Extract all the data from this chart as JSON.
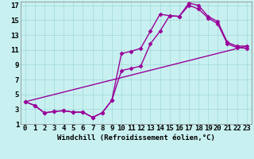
{
  "xlabel": "Windchill (Refroidissement éolien,°C)",
  "bg_color": "#c8f0f0",
  "line_color": "#990099",
  "xlim": [
    -0.5,
    23.5
  ],
  "ylim": [
    1,
    17.5
  ],
  "xticks": [
    0,
    1,
    2,
    3,
    4,
    5,
    6,
    7,
    8,
    9,
    10,
    11,
    12,
    13,
    14,
    15,
    16,
    17,
    18,
    19,
    20,
    21,
    22,
    23
  ],
  "yticks": [
    1,
    3,
    5,
    7,
    9,
    11,
    13,
    15,
    17
  ],
  "line1_x": [
    0,
    1,
    2,
    3,
    4,
    5,
    6,
    7,
    8,
    9,
    10,
    11,
    12,
    13,
    14,
    15,
    16,
    17,
    18,
    19,
    20,
    21,
    22,
    23
  ],
  "line1_y": [
    4.0,
    3.5,
    2.5,
    2.7,
    2.8,
    2.6,
    2.6,
    1.9,
    2.5,
    4.2,
    10.5,
    10.8,
    11.2,
    13.5,
    15.8,
    15.6,
    15.5,
    17.3,
    17.0,
    15.5,
    14.8,
    12.0,
    11.5,
    11.5
  ],
  "line2_x": [
    0,
    1,
    2,
    3,
    4,
    5,
    6,
    7,
    8,
    9,
    10,
    11,
    12,
    13,
    14,
    15,
    16,
    17,
    18,
    19,
    20,
    21,
    22,
    23
  ],
  "line2_y": [
    4.0,
    3.5,
    2.5,
    2.7,
    2.8,
    2.6,
    2.6,
    1.9,
    2.5,
    4.2,
    8.2,
    8.5,
    8.8,
    11.8,
    13.5,
    15.6,
    15.5,
    17.0,
    16.5,
    15.3,
    14.5,
    11.8,
    11.3,
    11.2
  ],
  "line3_x": [
    0,
    23
  ],
  "line3_y": [
    4.0,
    11.5
  ],
  "markersize": 2.5,
  "linewidth": 1.0,
  "xlabel_fontsize": 6.5,
  "tick_fontsize": 6.5,
  "grid_color": "#a0d8d8"
}
